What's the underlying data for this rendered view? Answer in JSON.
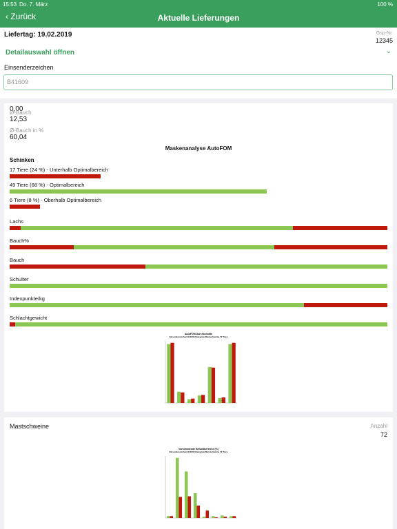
{
  "status_bar": {
    "time": "15:53",
    "date": "Do. 7. März",
    "battery": "100 %"
  },
  "nav": {
    "back": "Zurück",
    "title": "Aktuelle Lieferungen"
  },
  "header": {
    "liefertag": "Liefertag: 19.02.2019",
    "gsp_label": "Gsp-Nr.",
    "gsp_value": "12345",
    "detail": "Detailauswahl öffnen",
    "einsender_label": "Einsenderzeichen",
    "einsender_value": "B41609"
  },
  "stats": [
    {
      "value": "0,00"
    },
    {
      "label": "Ø-Bauch",
      "value": "12,53"
    },
    {
      "label": "Ø-Bauch in %",
      "value": "60,04"
    }
  ],
  "analysis": {
    "title": "Maskenanalyse AutoFOM",
    "section": "Schinken",
    "schinken": [
      {
        "label": "17 Tiere (24 %) - Unterhalb Optimalbereich",
        "percent": 24,
        "color": "#c0180c"
      },
      {
        "label": "49 Tiere (68 %) - Optimalbereich",
        "percent": 68,
        "color": "#8cc653"
      },
      {
        "label": "6 Tiere (8 %) - Oberhalb Optimalbereich",
        "percent": 8,
        "color": "#c0180c"
      }
    ],
    "bars": [
      {
        "label": "Lachs",
        "segments": [
          {
            "value": 3,
            "color": "#c0180c"
          },
          {
            "value": 72,
            "color": "#8cc653"
          },
          {
            "value": 25,
            "color": "#c0180c"
          }
        ]
      },
      {
        "label": "Bauch%",
        "segments": [
          {
            "value": 17,
            "color": "#c0180c"
          },
          {
            "value": 53,
            "color": "#8cc653"
          },
          {
            "value": 30,
            "color": "#c0180c"
          }
        ]
      },
      {
        "label": "Bauch",
        "segments": [
          {
            "value": 36,
            "color": "#c0180c"
          },
          {
            "value": 64,
            "color": "#8cc653"
          }
        ]
      },
      {
        "label": "Schulter",
        "segments": [
          {
            "value": 100,
            "color": "#8cc653"
          }
        ]
      },
      {
        "label": "Indexpunkte/kg",
        "segments": [
          {
            "value": 78,
            "color": "#8cc653"
          },
          {
            "value": 22,
            "color": "#c0180c"
          }
        ]
      },
      {
        "label": "Schlachtgewicht",
        "segments": [
          {
            "value": 1.5,
            "color": "#c0180c"
          },
          {
            "value": 98.5,
            "color": "#8cc653"
          }
        ]
      }
    ]
  },
  "card2": {
    "label": "Mastschweine",
    "count_label": "Anzahl",
    "count": "72"
  },
  "chart_data": [
    {
      "type": "bar",
      "title": "AutoFOM Durchschnitte",
      "subtitle": "Einsenderzeichen B41609 Kategorie Mastschweine 72 Tiere",
      "categories": [
        null,
        null,
        null,
        null,
        null,
        null,
        null
      ],
      "ylim": [
        0,
        100
      ],
      "series": [
        {
          "color": "#8cc653",
          "values": [
            95,
            18,
            6,
            12,
            58,
            8,
            95
          ]
        },
        {
          "color": "#c0180c",
          "values": [
            97,
            17,
            7,
            13,
            57,
            9,
            97
          ]
        }
      ]
    },
    {
      "type": "bar",
      "title": "Vorkommende Befundbereiche (%)",
      "subtitle": "Einsenderzeichen B41609 Kategorie Mastschweine 72 Tiere",
      "categories": [
        null,
        null,
        null,
        null,
        null,
        null,
        null,
        null
      ],
      "ylim": [
        0,
        100
      ],
      "series": [
        {
          "color": "#8cc653",
          "values": [
            3,
            97,
            75,
            40,
            2,
            3,
            4,
            3
          ]
        },
        {
          "color": "#c0180c",
          "values": [
            3,
            34,
            35,
            20,
            12,
            1,
            2,
            3
          ]
        }
      ]
    }
  ]
}
